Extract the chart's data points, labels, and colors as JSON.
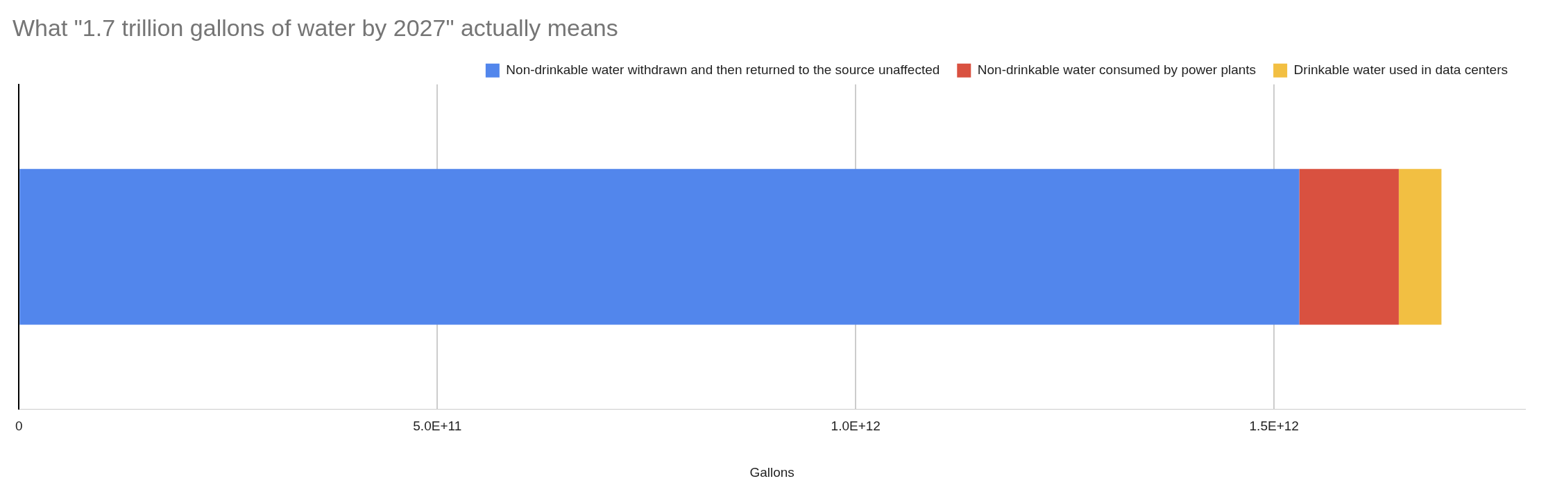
{
  "chart_data": {
    "type": "bar",
    "orientation": "horizontal",
    "stacked": true,
    "title": "What \"1.7 trillion gallons of water by 2027\" actually means",
    "xlabel": "Gallons",
    "categories": [
      null
    ],
    "series": [
      {
        "name": "Non-drinkable water withdrawn and then returned to the source unaffected",
        "color": "#5286ec",
        "values": [
          1530000000000.0
        ]
      },
      {
        "name": "Non-drinkable water consumed by power plants",
        "color": "#d95140",
        "values": [
          119000000000.0
        ]
      },
      {
        "name": "Drinkable water used in data centers",
        "color": "#f2bf42",
        "values": [
          51000000000.0
        ]
      }
    ],
    "xlim": [
      0,
      1800000000000.0
    ],
    "xticks": [
      0,
      {
        "value": 500000000000.0,
        "label": "5.0E+11"
      },
      {
        "value": 1000000000000.0,
        "label": "1.0E+12"
      },
      {
        "value": 1500000000000.0,
        "label": "1.5E+12"
      }
    ],
    "grid": "x",
    "legend": "top right"
  }
}
